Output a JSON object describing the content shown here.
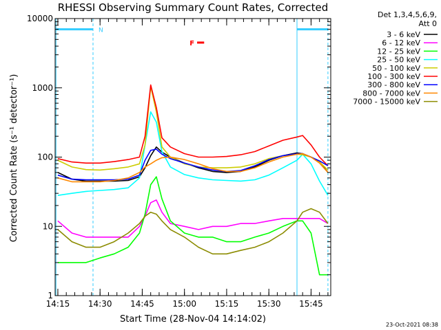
{
  "chart_data": {
    "type": "line",
    "title": "RHESSI Observing Summary Count Rates, Corrected",
    "xlabel": "Start Time (28-Nov-04 14:14:02)",
    "ylabel": "Corrected Count Rate (s⁻¹ detector⁻¹)",
    "y_scale": "log",
    "ylim": [
      1,
      10000
    ],
    "xlim": [
      "14:14:02",
      "15:52:00"
    ],
    "x_ticks": [
      "14:15",
      "14:30",
      "14:45",
      "15:00",
      "15:15",
      "15:30",
      "15:45"
    ],
    "y_ticks": [
      "1",
      "10",
      "100",
      "1000",
      "10000"
    ],
    "legend_header": [
      "Det 1,3,4,5,6,9,",
      "Att 0"
    ],
    "legend_placement": "right",
    "annotations": {
      "night_flag": "N",
      "flare_flag": "F"
    },
    "footer_date": "23-Oct-2021 08:38",
    "shaded_intervals": [
      {
        "label": "N",
        "start": "14:14:20",
        "end": "14:27:30"
      },
      {
        "label": "",
        "start": "15:40:00",
        "end": "15:51:00"
      }
    ],
    "flare_flag_interval": {
      "label": "F",
      "start": "15:04:30",
      "end": "15:07:00"
    },
    "times": [
      "14:15",
      "14:20",
      "14:25",
      "14:30",
      "14:35",
      "14:40",
      "14:44",
      "14:46",
      "14:48",
      "14:50",
      "14:52",
      "14:55",
      "15:00",
      "15:05",
      "15:10",
      "15:15",
      "15:20",
      "15:25",
      "15:30",
      "15:35",
      "15:40",
      "15:42",
      "15:45",
      "15:48",
      "15:51"
    ],
    "series": [
      {
        "name": "3 - 6 keV",
        "color": "#000000",
        "values": [
          60,
          48,
          45,
          45,
          45,
          46,
          52,
          70,
          105,
          140,
          118,
          100,
          82,
          70,
          62,
          60,
          62,
          72,
          90,
          105,
          115,
          112,
          100,
          85,
          60
        ]
      },
      {
        "name": "6 - 12 keV",
        "color": "#ff00ff",
        "values": [
          12,
          8,
          7,
          7,
          7,
          7,
          10,
          14,
          22,
          24,
          16,
          11,
          10,
          9,
          10,
          10,
          11,
          11,
          12,
          13,
          13,
          13,
          13,
          13,
          11
        ]
      },
      {
        "name": "12 - 25 keV",
        "color": "#00ff00",
        "values": [
          3,
          3,
          3,
          3.5,
          4,
          5,
          8,
          15,
          40,
          52,
          25,
          12,
          8,
          7,
          7,
          6,
          6,
          7,
          8,
          10,
          12,
          12,
          8,
          2,
          2
        ]
      },
      {
        "name": "25 - 50 keV",
        "color": "#00ffff",
        "values": [
          28,
          30,
          32,
          33,
          34,
          36,
          50,
          150,
          450,
          320,
          120,
          72,
          56,
          50,
          47,
          46,
          45,
          47,
          55,
          70,
          90,
          110,
          80,
          45,
          28
        ]
      },
      {
        "name": "50 - 100 keV",
        "color": "#cccc00",
        "values": [
          90,
          72,
          66,
          65,
          68,
          72,
          80,
          150,
          1050,
          450,
          140,
          100,
          80,
          72,
          70,
          70,
          72,
          80,
          95,
          105,
          110,
          108,
          100,
          85,
          65
        ]
      },
      {
        "name": "100 - 300 keV",
        "color": "#ff0000",
        "values": [
          95,
          85,
          82,
          82,
          86,
          92,
          100,
          200,
          1100,
          520,
          190,
          140,
          112,
          100,
          100,
          102,
          108,
          120,
          145,
          175,
          195,
          205,
          150,
          100,
          75
        ]
      },
      {
        "name": "300 - 800 keV",
        "color": "#0000ff",
        "values": [
          55,
          48,
          47,
          47,
          47,
          48,
          55,
          90,
          125,
          130,
          110,
          95,
          82,
          72,
          65,
          62,
          64,
          75,
          92,
          105,
          112,
          112,
          100,
          88,
          75
        ]
      },
      {
        "name": "800 - 7000 keV",
        "color": "#ff8800",
        "values": [
          50,
          44,
          44,
          44,
          46,
          50,
          60,
          72,
          80,
          90,
          98,
          100,
          92,
          80,
          68,
          62,
          62,
          70,
          85,
          100,
          110,
          112,
          100,
          82,
          60
        ]
      },
      {
        "name": "7000 - 15000 keV",
        "color": "#8b8b00",
        "values": [
          9,
          6,
          5,
          5,
          6,
          8,
          11,
          14,
          16,
          15,
          12,
          9,
          7,
          5,
          4,
          4,
          4.5,
          5,
          6,
          8,
          12,
          16,
          18,
          16,
          11
        ]
      }
    ]
  }
}
